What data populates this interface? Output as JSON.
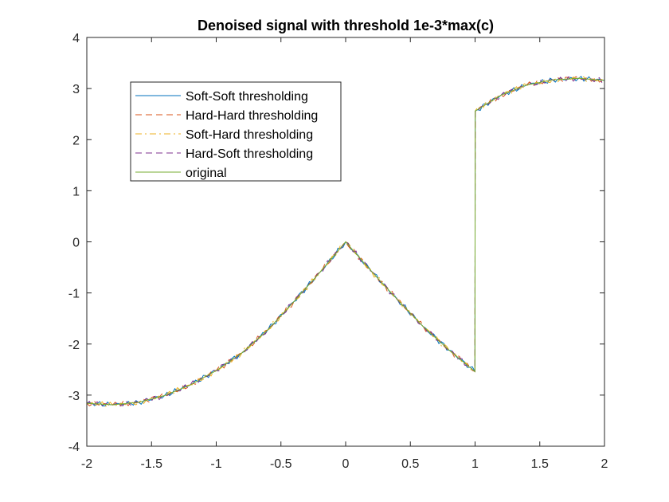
{
  "chart_data": {
    "type": "line",
    "title": "Denoised signal with threshold 1e-3*max(c)",
    "xlabel": "",
    "ylabel": "",
    "xlim": [
      -2,
      2
    ],
    "ylim": [
      -4,
      4
    ],
    "xticks": [
      -2,
      -1.5,
      -1,
      -0.5,
      0,
      0.5,
      1,
      1.5,
      2
    ],
    "xtick_labels": [
      "-2",
      "-1.5",
      "-1",
      "-0.5",
      "0",
      "0.5",
      "1",
      "1.5",
      "2"
    ],
    "yticks": [
      -4,
      -3,
      -2,
      -1,
      0,
      1,
      2,
      3,
      4
    ],
    "ytick_labels": [
      "-4",
      "-3",
      "-2",
      "-1",
      "0",
      "1",
      "2",
      "3",
      "4"
    ],
    "grid": false,
    "legend_position": "top-left",
    "x": [
      -2.0,
      -1.8,
      -1.6,
      -1.4,
      -1.2,
      -1.0,
      -0.8,
      -0.6,
      -0.4,
      -0.2,
      0.0,
      0.2,
      0.4,
      0.6,
      0.8,
      0.999,
      1.001,
      1.2,
      1.4,
      1.6,
      1.8,
      2.0
    ],
    "series": [
      {
        "name": "Soft-Soft thresholding",
        "color": "#0072BD",
        "style": "solid",
        "values": [
          -3.16,
          -3.19,
          -3.14,
          -3.01,
          -2.8,
          -2.52,
          -2.17,
          -1.72,
          -1.17,
          -0.6,
          0.0,
          -0.58,
          -1.13,
          -1.66,
          -2.12,
          -2.54,
          2.56,
          2.87,
          3.07,
          3.17,
          3.2,
          3.16
        ]
      },
      {
        "name": "Hard-Hard thresholding",
        "color": "#D95319",
        "style": "dashed",
        "values": [
          -3.16,
          -3.19,
          -3.14,
          -3.01,
          -2.8,
          -2.52,
          -2.17,
          -1.72,
          -1.17,
          -0.6,
          0.0,
          -0.58,
          -1.13,
          -1.66,
          -2.12,
          -2.54,
          2.56,
          2.87,
          3.07,
          3.17,
          3.2,
          3.16
        ]
      },
      {
        "name": "Soft-Hard thresholding",
        "color": "#EDB120",
        "style": "dashdot",
        "values": [
          -3.16,
          -3.19,
          -3.14,
          -3.01,
          -2.8,
          -2.52,
          -2.17,
          -1.72,
          -1.17,
          -0.6,
          0.0,
          -0.58,
          -1.13,
          -1.66,
          -2.12,
          -2.54,
          2.56,
          2.87,
          3.07,
          3.17,
          3.2,
          3.16
        ]
      },
      {
        "name": "Hard-Soft thresholding",
        "color": "#7E2F8E",
        "style": "dashed",
        "values": [
          -3.16,
          -3.19,
          -3.14,
          -3.01,
          -2.8,
          -2.52,
          -2.17,
          -1.72,
          -1.17,
          -0.6,
          0.0,
          -0.58,
          -1.13,
          -1.66,
          -2.12,
          -2.54,
          2.56,
          2.87,
          3.07,
          3.17,
          3.2,
          3.16
        ]
      },
      {
        "name": "original",
        "color": "#77AC30",
        "style": "solid",
        "values": [
          -3.16,
          -3.19,
          -3.14,
          -3.01,
          -2.8,
          -2.52,
          -2.17,
          -1.72,
          -1.17,
          -0.6,
          0.0,
          -0.58,
          -1.13,
          -1.66,
          -2.12,
          -2.54,
          2.56,
          2.87,
          3.07,
          3.17,
          3.2,
          3.16
        ]
      }
    ]
  }
}
